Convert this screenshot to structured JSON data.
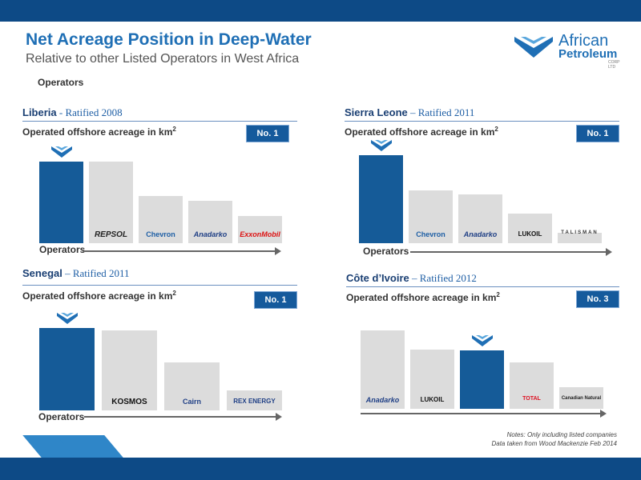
{
  "header": {
    "title": "Net Acreage Position in Deep-Water",
    "subtitle": "Relative to other Listed Operators in West Africa",
    "operators_heading": "Operators"
  },
  "logo": {
    "line1": "African",
    "line2": "Petroleum",
    "line3": "CORP LTD"
  },
  "notes": {
    "line1": "Notes: Only including listed companies",
    "line2": "Data taken from Wood Mackenzie Feb 2014"
  },
  "colors": {
    "brand_blue": "#155b98",
    "competitor_grey": "#dcdcdc",
    "title_blue": "#1f6fb5"
  },
  "chart_data": [
    {
      "type": "bar",
      "country": "Liberia",
      "ratified": " - Ratified 2008",
      "ylabel": "Operated offshore acreage in km",
      "rank": "No. 1",
      "xlabel": "Operators",
      "categories": [
        "African Petroleum",
        "REPSOL",
        "Chevron",
        "Anadarko",
        "ExxonMobil"
      ],
      "values": [
        100,
        100,
        58,
        52,
        33
      ],
      "highlight_index": 0
    },
    {
      "type": "bar",
      "country": "Sierra Leone",
      "ratified": " – Ratified 2011",
      "ylabel": "Operated offshore acreage in km",
      "rank": "No. 1",
      "xlabel": "Operators",
      "categories": [
        "African Petroleum",
        "Chevron",
        "Anadarko",
        "LUKOIL",
        "TALISMAN"
      ],
      "values": [
        100,
        60,
        55,
        34,
        12
      ],
      "highlight_index": 0
    },
    {
      "type": "bar",
      "country": "Senegal",
      "ratified": " – Ratified 2011",
      "ylabel": "Operated offshore acreage in km",
      "rank": "No. 1",
      "xlabel": "Operators",
      "categories": [
        "African Petroleum",
        "KOSMOS",
        "Cairn",
        "REX ENERGY"
      ],
      "values": [
        100,
        97,
        58,
        24
      ],
      "highlight_index": 0
    },
    {
      "type": "bar",
      "country": "Côte d’Ivoire",
      "ratified": " – Ratified 2012",
      "ylabel": "Operated offshore acreage in km",
      "rank": "No. 3",
      "xlabel": "",
      "categories": [
        "Anadarko",
        "LUKOIL",
        "African Petroleum",
        "TOTAL",
        "Canadian Natural"
      ],
      "values": [
        100,
        76,
        74,
        59,
        28
      ],
      "highlight_index": 2
    }
  ]
}
